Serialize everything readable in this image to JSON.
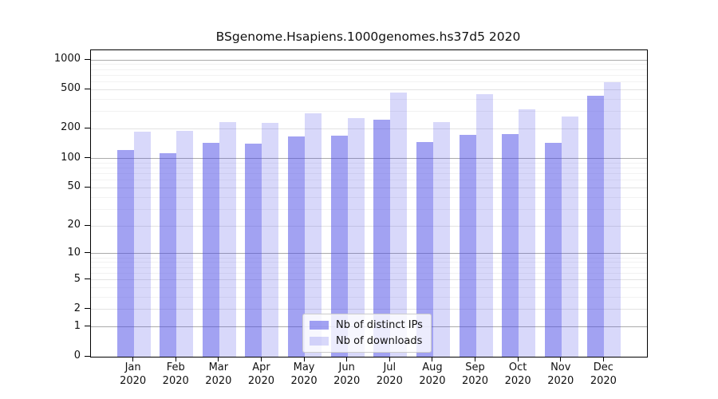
{
  "title": "BSgenome.Hsapiens.1000genomes.hs37d5 2020",
  "chart_data": {
    "type": "bar",
    "title": "BSgenome.Hsapiens.1000genomes.hs37d5 2020",
    "xlabel": "",
    "ylabel": "",
    "y_scale": "log10(1+x)",
    "ylim": [
      0,
      1250
    ],
    "grid": true,
    "legend_position": "bottom-center",
    "categories": [
      "Jan",
      "Feb",
      "Mar",
      "Apr",
      "May",
      "Jun",
      "Jul",
      "Aug",
      "Sep",
      "Oct",
      "Nov",
      "Dec"
    ],
    "x_tick_year": "2020",
    "y_ticks": [
      1000,
      500,
      200,
      100,
      50,
      20,
      10,
      5,
      2,
      1,
      0
    ],
    "grid_minor_values": [
      3,
      4,
      6,
      7,
      8,
      9,
      30,
      40,
      60,
      70,
      80,
      90,
      300,
      400,
      600,
      700,
      800,
      900
    ],
    "grid_pow10_values": [
      1,
      10,
      100,
      1000
    ],
    "series": [
      {
        "name": "Nb of distinct IPs",
        "color": "rgba(70,70,230,0.5)",
        "color_hex_on_white": "#a2a2f2",
        "values": [
          122,
          113,
          145,
          142,
          168,
          170,
          248,
          147,
          174,
          177,
          145,
          433
        ]
      },
      {
        "name": "Nb of downloads",
        "color": "rgba(70,70,230,0.21)",
        "color_hex_on_white": "#d8d8fa",
        "values": [
          186,
          190,
          234,
          230,
          288,
          257,
          466,
          234,
          450,
          315,
          267,
          595
        ]
      }
    ],
    "colors": {
      "grid_minor": "#f2f2f2",
      "grid_major": "#e3e3e3",
      "grid_pow10": "#ababab",
      "axis": "#000000",
      "background": "#ffffff"
    }
  },
  "legend": {
    "items": [
      {
        "label": "Nb of distinct IPs"
      },
      {
        "label": "Nb of downloads"
      }
    ]
  }
}
